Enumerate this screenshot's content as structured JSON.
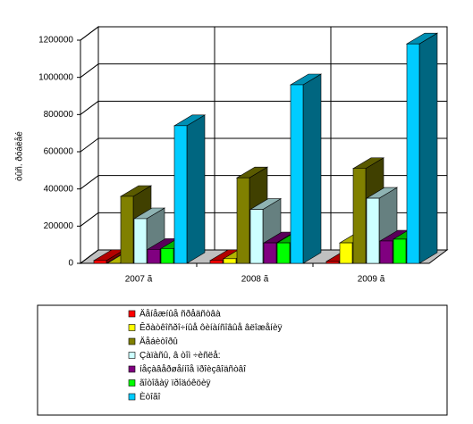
{
  "chart_data": {
    "type": "bar3d",
    "y_label": "òûñ. ðóáëåé",
    "categories": [
      "2007 ã",
      "2008 ã",
      "2009 ã"
    ],
    "ylim": [
      0,
      1200000
    ],
    "yticks": [
      0,
      200000,
      400000,
      600000,
      800000,
      1000000,
      1200000
    ],
    "grid": true,
    "legend": "bottom",
    "series": [
      {
        "name": "Äåíåæíûå ñðåäñòâà",
        "color": "#ff0000",
        "values": [
          15000,
          15000,
          10000
        ]
      },
      {
        "name": "Êðàòêîñðî÷íûå ôèíàíñîâûå âëîæåíèÿ",
        "color": "#ffff00",
        "values": [
          0,
          25000,
          110000
        ]
      },
      {
        "name": "Äåáèòîðû",
        "color": "#808000",
        "values": [
          360000,
          460000,
          510000
        ]
      },
      {
        "name": "Çàïàñû, â òîì ÷èñëå:",
        "color": "#ccffff",
        "values": [
          240000,
          290000,
          350000
        ]
      },
      {
        "name": "íåçàâåðøåííîå ïðîèçâîäñòâî",
        "color": "#800080",
        "values": [
          75000,
          110000,
          120000
        ]
      },
      {
        "name": "ãîòîâàÿ ïðîäóêöèÿ",
        "color": "#00ff00",
        "values": [
          80000,
          110000,
          130000
        ]
      },
      {
        "name": "Èòîãî",
        "color": "#00ccff",
        "values": [
          740000,
          960000,
          1180000
        ]
      }
    ]
  }
}
